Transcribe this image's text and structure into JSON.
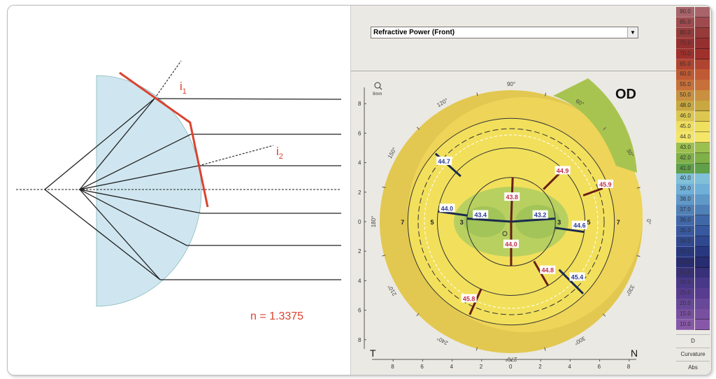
{
  "diagram": {
    "label_i1": "i",
    "label_i1_sub": "1",
    "label_i2": "i",
    "label_i2_sub": "2",
    "refractive_index": "n = 1.3375"
  },
  "topography": {
    "map_type": "Refractive Power (Front)",
    "eye": "OD",
    "zoom_label": "9mm",
    "temporal": "T",
    "nasal": "N",
    "y_ticks": [
      "8",
      "6",
      "4",
      "2",
      "0",
      "2",
      "4",
      "6",
      "8"
    ],
    "x_ticks": [
      "8",
      "6",
      "4",
      "2",
      "0",
      "2",
      "4",
      "6",
      "8"
    ],
    "angle_labels": [
      "0°",
      "30°",
      "60°",
      "90°",
      "120°",
      "150°",
      "180°",
      "210°",
      "240°",
      "270°",
      "300°",
      "330°"
    ],
    "ring_labels": [
      "7",
      "5",
      "3",
      "3",
      "5",
      "7"
    ],
    "values": [
      {
        "text": "44.7",
        "color": "blue"
      },
      {
        "text": "44.9",
        "color": "red"
      },
      {
        "text": "45.9",
        "color": "red"
      },
      {
        "text": "43.8",
        "color": "red"
      },
      {
        "text": "44.0",
        "color": "blue"
      },
      {
        "text": "43.4",
        "color": "blue"
      },
      {
        "text": "43.2",
        "color": "blue"
      },
      {
        "text": "44.6",
        "color": "blue"
      },
      {
        "text": "44.0",
        "color": "red"
      },
      {
        "text": "44.8",
        "color": "red"
      },
      {
        "text": "45.4",
        "color": "blue"
      },
      {
        "text": "45.8",
        "color": "red"
      }
    ]
  },
  "scale": {
    "labels": [
      "90.0",
      "85.0",
      "80.0",
      "75.0",
      "70.0",
      "65.0",
      "60.0",
      "55.0",
      "50.0",
      "48.0",
      "46.0",
      "45.0",
      "44.0",
      "43.0",
      "42.0",
      "41.0",
      "40.0",
      "39.0",
      "38.0",
      "37.0",
      "36.0",
      "35.0",
      "34.0",
      "33.0",
      "32.0",
      "31.0",
      "30.0",
      "25.0",
      "20.0",
      "15.0",
      "10.0"
    ],
    "colors": [
      "#a8646a",
      "#9e4a4e",
      "#963a3a",
      "#963030",
      "#a0302c",
      "#b04430",
      "#c05a34",
      "#c8703a",
      "#c89040",
      "#c8a840",
      "#dcc850",
      "#f0e060",
      "#f4e668",
      "#9cc050",
      "#80b048",
      "#60a048",
      "#80c0d8",
      "#70b0d8",
      "#6098c8",
      "#5080b8",
      "#4068a8",
      "#3858a0",
      "#304890",
      "#283880",
      "#282c70",
      "#383078",
      "#483888",
      "#583c90",
      "#684898",
      "#7850a0",
      "#8858a8"
    ],
    "unit": "D",
    "mode": "Curvature",
    "ref": "Abs"
  }
}
